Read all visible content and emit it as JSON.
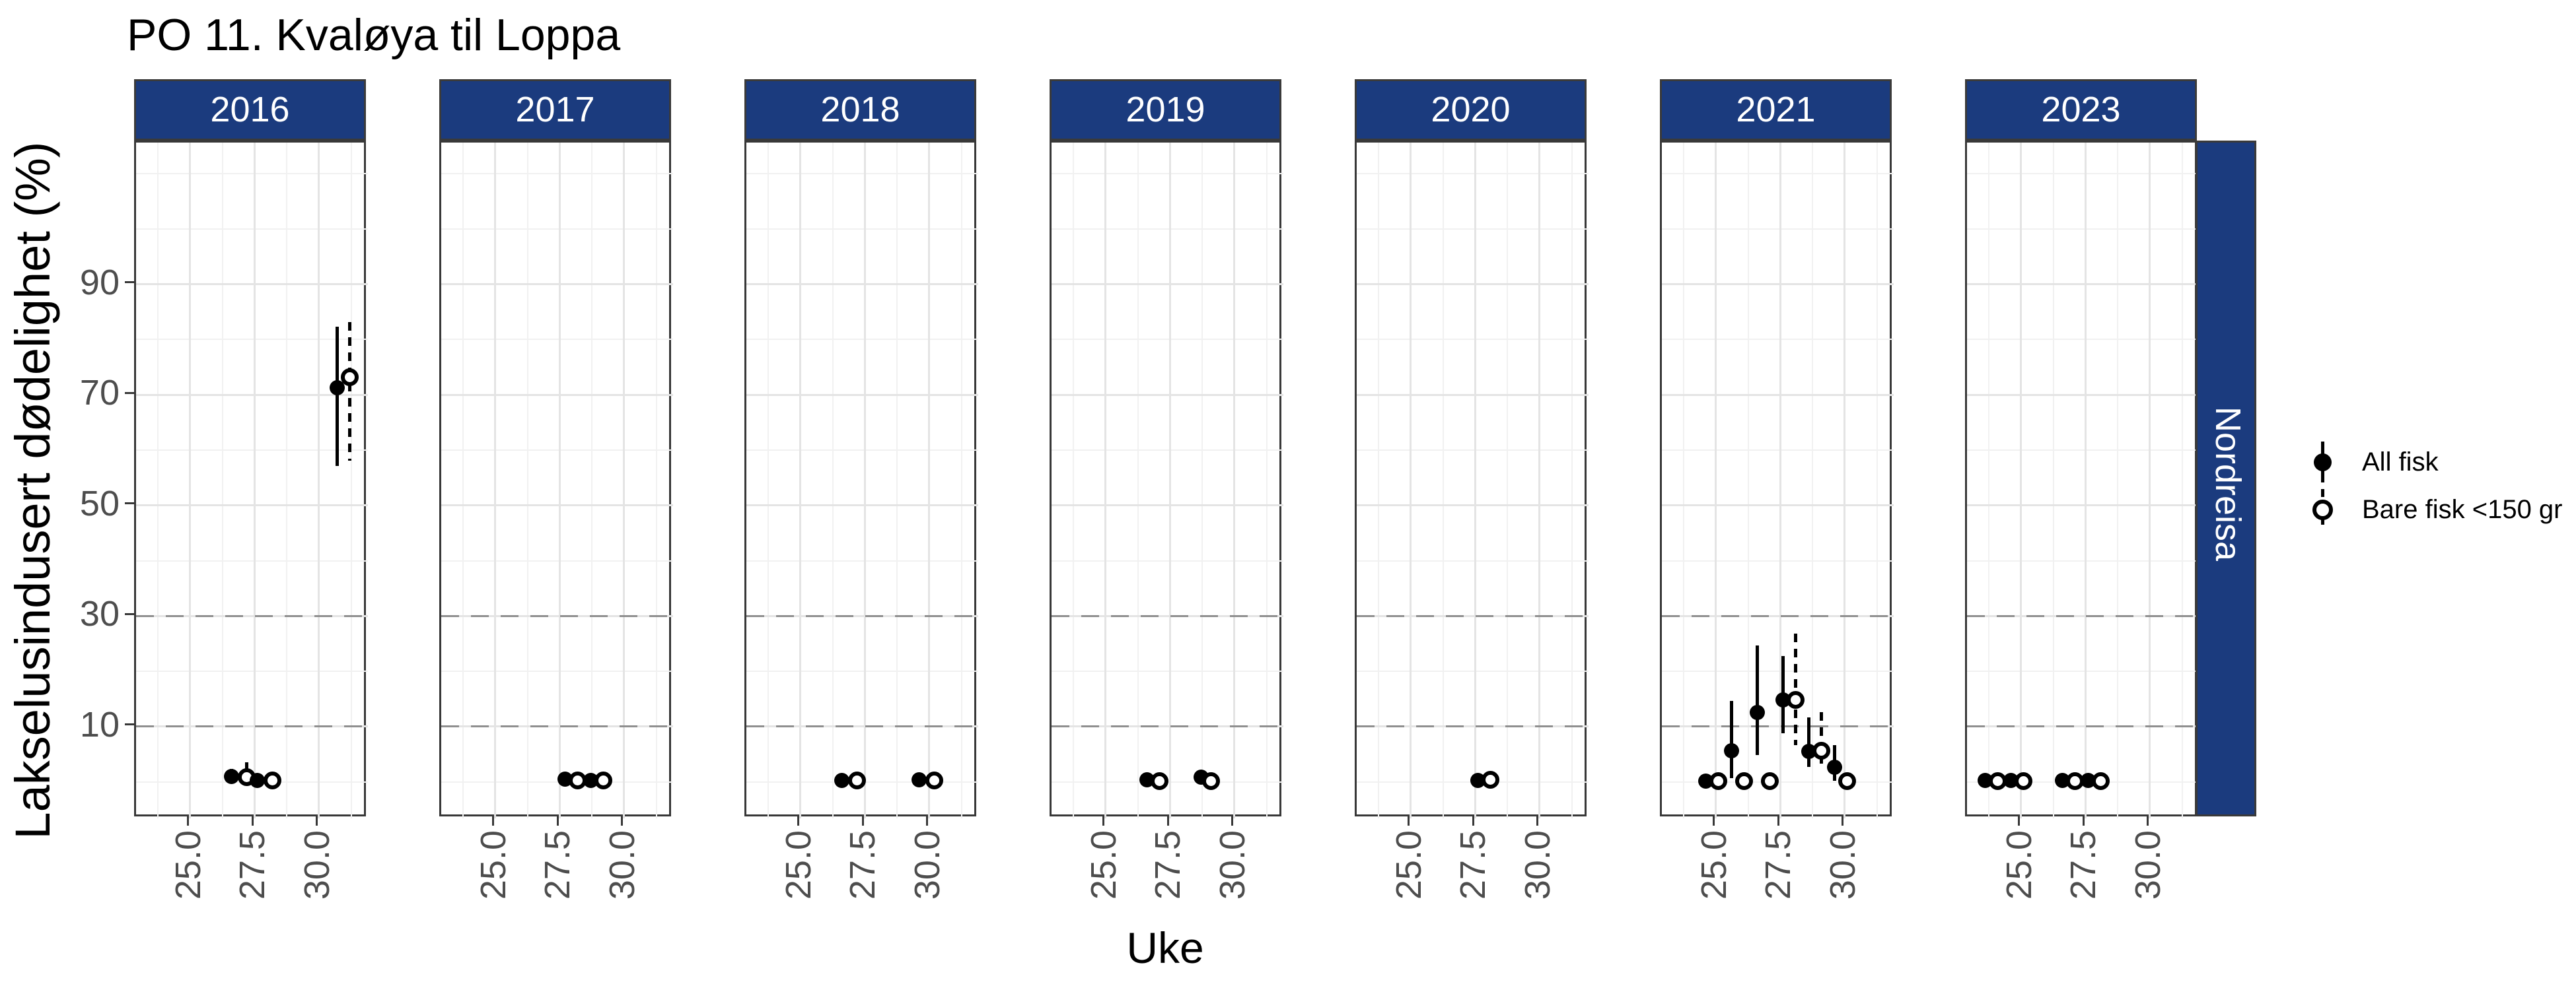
{
  "title": "PO 11. Kvaløya til Loppa",
  "facet_row_label": "Nordreisa",
  "axes": {
    "x_title": "Uke",
    "y_title": "Lakselusindusert dødelighet (%)",
    "x_tick_labels": [
      "25.0",
      "27.5",
      "30.0"
    ],
    "x_tick_values": [
      25.0,
      27.5,
      30.0
    ],
    "y_tick_labels": [
      "10",
      "30",
      "50",
      "70",
      "90"
    ],
    "y_tick_values": [
      10,
      30,
      50,
      70,
      90
    ],
    "y_minor_values": [
      0,
      20,
      40,
      60,
      80,
      100,
      110
    ],
    "x_minor_values": [
      23.75,
      26.25,
      28.75,
      31.25
    ]
  },
  "reference_lines": [
    10,
    30
  ],
  "legend": [
    {
      "label": "All fisk",
      "marker": "filled-circle-with-solid-range"
    },
    {
      "label": "Bare fisk <150 gr",
      "marker": "open-circle-with-dashed-range"
    }
  ],
  "colors": {
    "strip_background": "#1B3B7E",
    "strip_text": "#FFFFFF",
    "panel_border": "#383838",
    "grid_major": "#E4E4E4",
    "grid_minor": "#F1F1F1",
    "reference_line": "#8F8F8F",
    "tick_text": "#4D4D4D",
    "data": "#000000"
  },
  "chart_data": {
    "type": "scatter",
    "title": "PO 11. Kvaløya til Loppa",
    "xlabel": "Uke",
    "ylabel": "Lakselusindusert dødelighet (%)",
    "x_domain": [
      22.9,
      31.9
    ],
    "y_domain": [
      -6.6,
      115.6
    ],
    "series_names": [
      "All fisk",
      "Bare fisk <150 gr"
    ],
    "facets": [
      {
        "year": "2016",
        "points": [
          {
            "week": 26.6,
            "value": 1.0,
            "lo": 0.0,
            "hi": 2.4,
            "series": "All fisk"
          },
          {
            "week": 27.2,
            "value": 0.8,
            "lo": 0.0,
            "hi": 3.5,
            "series": "Bare fisk <150 gr"
          },
          {
            "week": 27.6,
            "value": 0.3,
            "series": "All fisk"
          },
          {
            "week": 28.2,
            "value": 0.3,
            "series": "Bare fisk <150 gr"
          },
          {
            "week": 30.7,
            "value": 71.3,
            "lo": 57.1,
            "hi": 82.3,
            "series": "All fisk"
          },
          {
            "week": 31.2,
            "value": 73.2,
            "lo": 58.1,
            "hi": 83.1,
            "series": "Bare fisk <150 gr"
          }
        ]
      },
      {
        "year": "2017",
        "points": [
          {
            "week": 27.7,
            "value": 0.5,
            "series": "All fisk"
          },
          {
            "week": 28.2,
            "value": 0.3,
            "series": "Bare fisk <150 gr"
          },
          {
            "week": 28.7,
            "value": 0.3,
            "series": "All fisk"
          },
          {
            "week": 29.2,
            "value": 0.3,
            "series": "Bare fisk <150 gr"
          }
        ]
      },
      {
        "year": "2018",
        "points": [
          {
            "week": 26.6,
            "value": 0.3,
            "series": "All fisk"
          },
          {
            "week": 27.2,
            "value": 0.3,
            "series": "Bare fisk <150 gr"
          },
          {
            "week": 29.6,
            "value": 0.4,
            "series": "All fisk"
          },
          {
            "week": 30.2,
            "value": 0.3,
            "series": "Bare fisk <150 gr"
          }
        ]
      },
      {
        "year": "2019",
        "points": [
          {
            "week": 26.6,
            "value": 0.4,
            "series": "All fisk"
          },
          {
            "week": 27.1,
            "value": 0.2,
            "series": "Bare fisk <150 gr"
          },
          {
            "week": 28.7,
            "value": 0.9,
            "series": "All fisk"
          },
          {
            "week": 29.1,
            "value": 0.2,
            "series": "Bare fisk <150 gr"
          }
        ]
      },
      {
        "year": "2020",
        "points": [
          {
            "week": 27.6,
            "value": 0.3,
            "series": "All fisk"
          },
          {
            "week": 28.1,
            "value": 0.4,
            "series": "Bare fisk <150 gr"
          }
        ]
      },
      {
        "year": "2021",
        "points": [
          {
            "week": 24.6,
            "value": 0.2,
            "series": "All fisk"
          },
          {
            "week": 25.1,
            "value": 0.2,
            "series": "Bare fisk <150 gr"
          },
          {
            "week": 25.6,
            "value": 5.6,
            "lo": 0.7,
            "hi": 14.6,
            "series": "All fisk"
          },
          {
            "week": 26.1,
            "value": 0.2,
            "series": "Bare fisk <150 gr"
          },
          {
            "week": 26.6,
            "value": 12.6,
            "lo": 4.8,
            "hi": 24.7,
            "series": "All fisk"
          },
          {
            "week": 27.1,
            "value": 0.2,
            "series": "Bare fisk <150 gr"
          },
          {
            "week": 27.6,
            "value": 14.8,
            "lo": 8.8,
            "hi": 22.7,
            "series": "All fisk"
          },
          {
            "week": 28.1,
            "value": 14.8,
            "lo": 6.7,
            "hi": 26.8,
            "series": "Bare fisk <150 gr"
          },
          {
            "week": 28.6,
            "value": 5.5,
            "lo": 2.7,
            "hi": 11.6,
            "series": "All fisk"
          },
          {
            "week": 29.1,
            "value": 5.6,
            "lo": 3.3,
            "hi": 12.6,
            "series": "Bare fisk <150 gr"
          },
          {
            "week": 29.6,
            "value": 2.7,
            "lo": 0.2,
            "hi": 6.7,
            "series": "All fisk"
          },
          {
            "week": 30.1,
            "value": 0.2,
            "series": "Bare fisk <150 gr"
          }
        ]
      },
      {
        "year": "2023",
        "points": [
          {
            "week": 23.6,
            "value": 0.3,
            "series": "All fisk"
          },
          {
            "week": 24.1,
            "value": 0.2,
            "series": "Bare fisk <150 gr"
          },
          {
            "week": 24.6,
            "value": 0.3,
            "series": "All fisk"
          },
          {
            "week": 25.1,
            "value": 0.2,
            "series": "Bare fisk <150 gr"
          },
          {
            "week": 26.6,
            "value": 0.3,
            "series": "All fisk"
          },
          {
            "week": 27.1,
            "value": 0.2,
            "series": "Bare fisk <150 gr"
          },
          {
            "week": 27.6,
            "value": 0.3,
            "series": "All fisk"
          },
          {
            "week": 28.1,
            "value": 0.2,
            "series": "Bare fisk <150 gr"
          }
        ]
      }
    ]
  }
}
